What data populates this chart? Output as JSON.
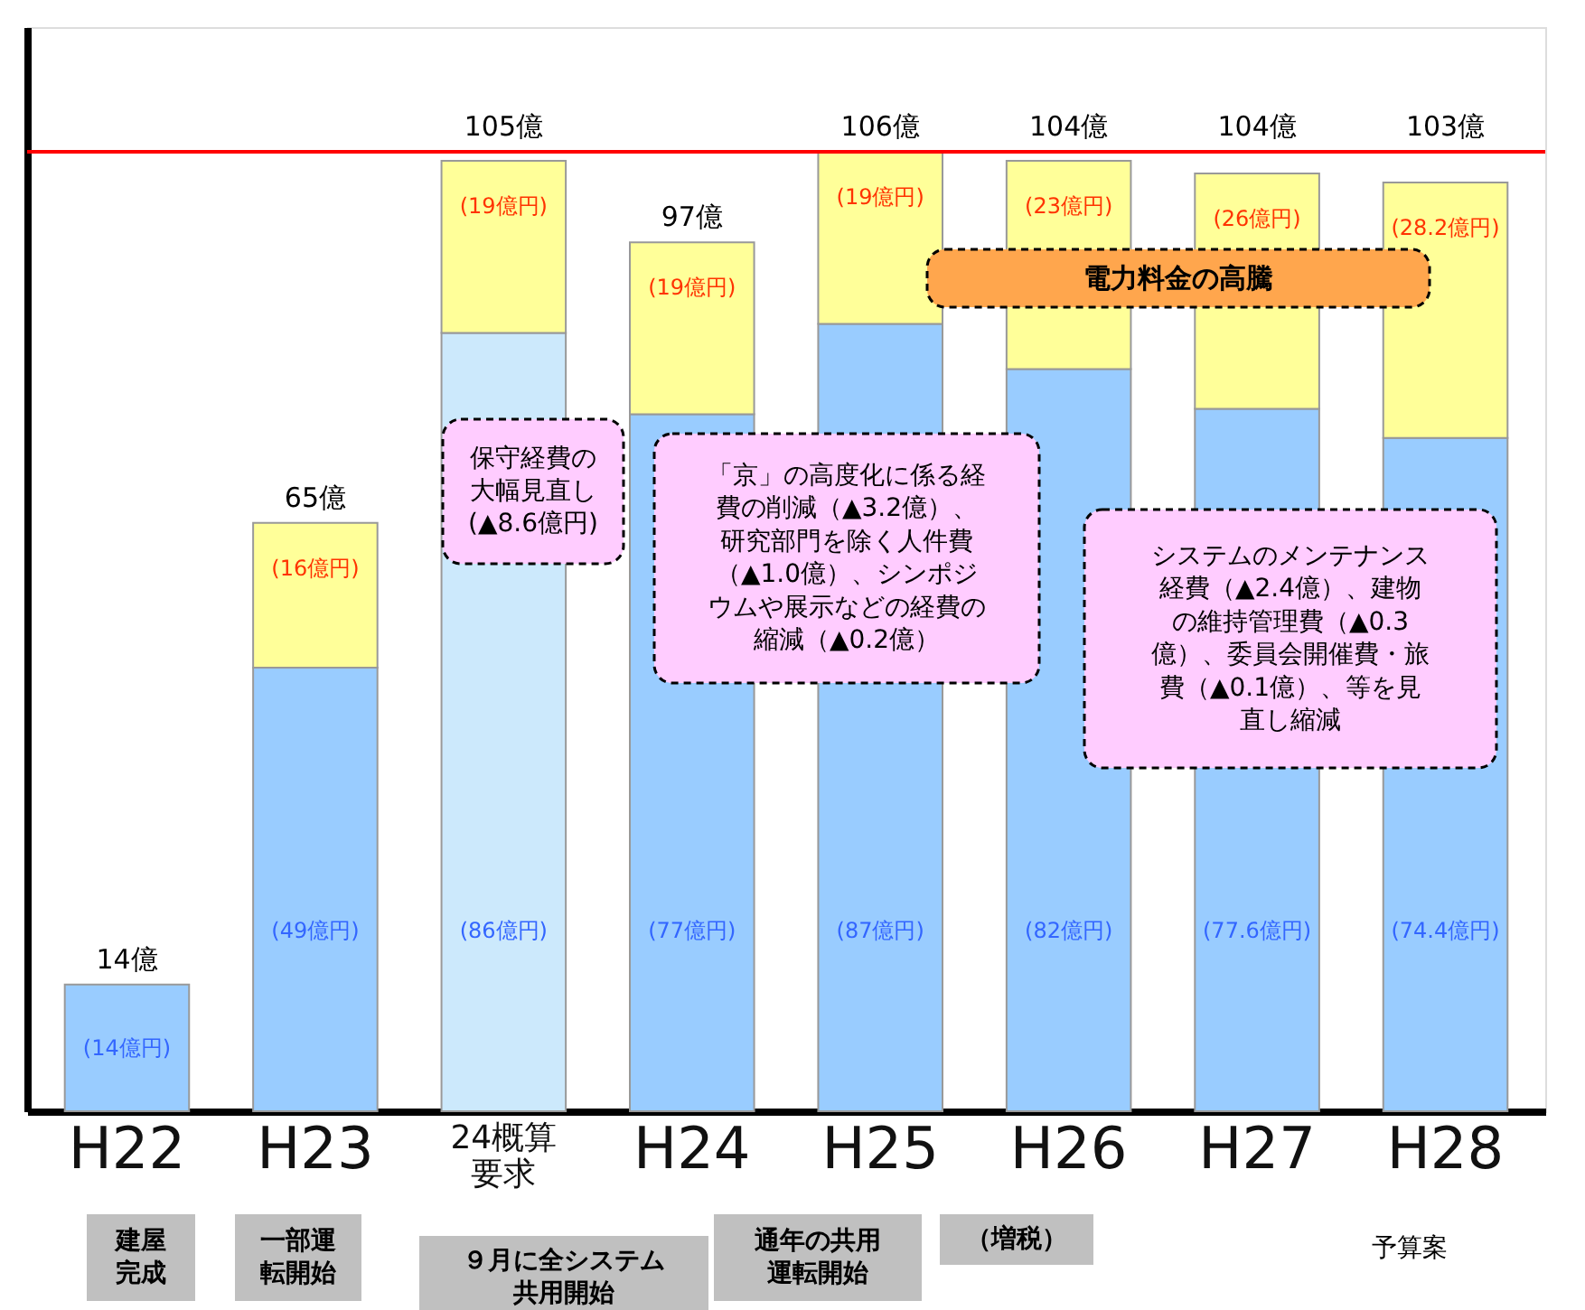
{
  "chart_data": {
    "type": "bar",
    "stacked": true,
    "categories": [
      "H22",
      "H23",
      "24概算要求",
      "H24",
      "H25",
      "H26",
      "H27",
      "H28"
    ],
    "series": [
      {
        "colors": [
          "#99ccff",
          "#99ccff",
          "#cce9fc",
          "#99ccff",
          "#99ccff",
          "#99ccff",
          "#99ccff",
          "#99ccff"
        ],
        "values": [
          14,
          49,
          86,
          77,
          87,
          82,
          77.6,
          74.4
        ],
        "value_labels": [
          "(14億円)",
          "(49億円)",
          "(86億円)",
          "(77億円)",
          "(87億円)",
          "(82億円)",
          "(77.6億円)",
          "(74.4億円)"
        ]
      },
      {
        "color": "#ffff99",
        "values": [
          null,
          16,
          19,
          19,
          19,
          23,
          26,
          28.2
        ],
        "value_labels": [
          null,
          "(16億円)",
          "(19億円)",
          "(19億円)",
          "(19億円)",
          "(23億円)",
          "(26億円)",
          "(28.2億円)"
        ]
      }
    ],
    "totals": [
      "14億",
      "65億",
      "105億",
      "97億",
      "106億",
      "104億",
      "104億",
      "103億"
    ],
    "ref_lines": [
      {
        "axis": "y",
        "value": 106,
        "color": "#ff0000"
      }
    ],
    "tick_labels": "x",
    "annotations": [
      "保守経費の大幅見直し(▲8.6億円)",
      "「京」の高度化に係る経費の削減（▲3.2億）、研究部門を除く人件費（▲1.0億）、シンポジウムや展示などの経費の縮減（▲0.2億）",
      "システムのメンテナンス経費（▲2.4億）、建物の維持管理費（▲0.3億）、委員会開催費・旅費（▲0.1億）、等を見直し縮減",
      "電力料金の高騰",
      "建屋完成",
      "一部運転開始",
      "９月に全システム共用開始",
      "通年の共用運転開始",
      "（増税）",
      "予算案"
    ]
  }
}
